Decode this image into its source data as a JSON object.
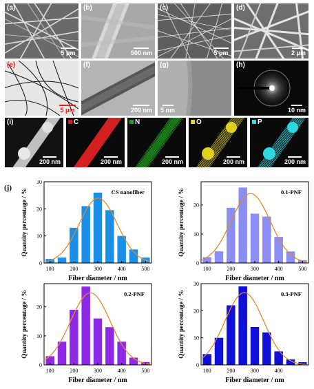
{
  "row1": [
    {
      "label": "(a)",
      "scale": "5 μm"
    },
    {
      "label": "(b)",
      "scale": "500 nm"
    },
    {
      "label": "(c)",
      "scale": "5 μm"
    },
    {
      "label": "(d)",
      "scale": "2 μm"
    }
  ],
  "row2": [
    {
      "label": "(e)",
      "scale": "5 μm"
    },
    {
      "label": "(f)",
      "scale": "200 nm"
    },
    {
      "label": "(g)",
      "scale": "5 nm"
    },
    {
      "label": "(h)",
      "scale": "10 nm"
    }
  ],
  "row3": [
    {
      "label": "(i)",
      "element": "",
      "scale": "200 nm"
    },
    {
      "label": "",
      "element": "C",
      "scale": "200 nm"
    },
    {
      "label": "",
      "element": "N",
      "scale": "200 nm"
    },
    {
      "label": "",
      "element": "O",
      "scale": "200 nm"
    },
    {
      "label": "",
      "element": "P",
      "scale": "200 nm"
    }
  ],
  "colors": {
    "C": "#d42020",
    "N": "#22a022",
    "O": "#e0d020",
    "P": "#30d8e0",
    "fit": "#e08a2a"
  },
  "panel_j_label": "(j)",
  "chart_data": [
    {
      "type": "bar",
      "title": "CS nanofiber",
      "xlabel": "Fiber diameter / nm",
      "ylabel": "Quantity percentage / %",
      "x": [
        100,
        150,
        200,
        250,
        300,
        350,
        400,
        450,
        500
      ],
      "values": [
        1.5,
        2,
        13,
        21,
        26,
        19.5,
        10,
        5,
        2
      ],
      "xticks": [
        100,
        200,
        300,
        400,
        500
      ],
      "yticks": [
        0,
        10,
        20,
        30
      ],
      "ylim": [
        0,
        30
      ],
      "xlim": [
        75,
        525
      ],
      "color": "#1a8fe8"
    },
    {
      "type": "bar",
      "title": "0.1-PNF",
      "xlabel": "Fiber diameter / nm",
      "ylabel": "Quantity percentage / %",
      "x": [
        100,
        150,
        200,
        250,
        300,
        350,
        400,
        450,
        500
      ],
      "values": [
        2,
        4,
        19,
        26,
        17,
        16,
        9,
        4,
        1
      ],
      "xticks": [
        100,
        200,
        300,
        400,
        500
      ],
      "yticks": [
        0,
        10,
        20
      ],
      "ylim": [
        0,
        28
      ],
      "xlim": [
        75,
        525
      ],
      "color": "#8a8ef2"
    },
    {
      "type": "bar",
      "title": "0.2-PNF",
      "xlabel": "Fiber diameter / nm",
      "ylabel": "Quantity percentage / %",
      "x": [
        100,
        150,
        200,
        250,
        300,
        350,
        400,
        450,
        500
      ],
      "values": [
        3,
        8,
        19,
        27,
        16,
        13,
        8,
        2.5,
        1
      ],
      "xticks": [
        100,
        200,
        300,
        400,
        500
      ],
      "yticks": [
        0,
        10,
        20
      ],
      "ylim": [
        0,
        28
      ],
      "xlim": [
        75,
        525
      ],
      "color": "#8c28e6"
    },
    {
      "type": "bar",
      "title": "0.3-PNF",
      "xlabel": "Fiber diameter / nm",
      "ylabel": "Quantity percentage / %",
      "x": [
        100,
        150,
        200,
        250,
        300,
        350,
        400,
        450,
        500
      ],
      "values": [
        4,
        10,
        22,
        29,
        14,
        12,
        5,
        2,
        1
      ],
      "xticks": [
        100,
        200,
        300,
        400
      ],
      "yticks": [
        0,
        10,
        20,
        30
      ],
      "ylim": [
        0,
        30
      ],
      "xlim": [
        75,
        525
      ],
      "color": "#1010d8"
    }
  ]
}
